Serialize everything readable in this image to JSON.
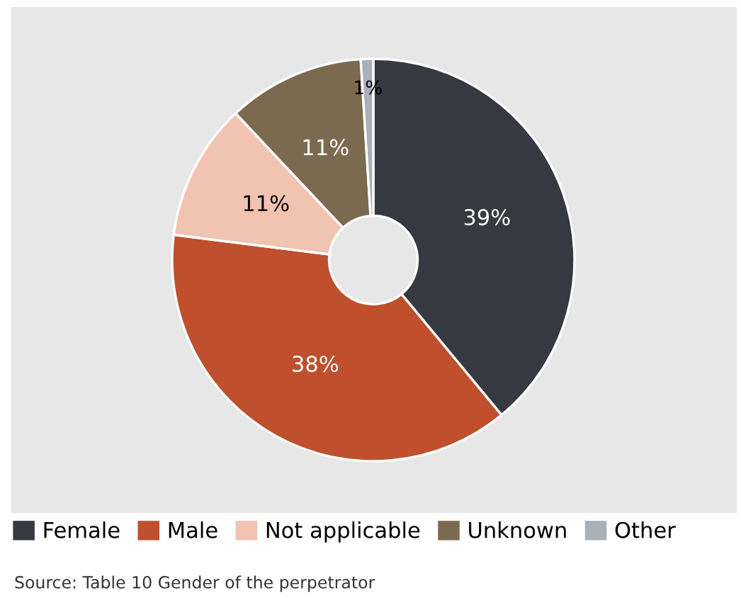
{
  "chart_data": {
    "type": "donut",
    "categories": [
      "Female",
      "Male",
      "Not applicable",
      "Unknown",
      "Other"
    ],
    "values": [
      39,
      38,
      11,
      11,
      1
    ],
    "colors": [
      "#363842",
      "#c04f2d",
      "#f1c3b1",
      "#7b6a4f",
      "#a8b0b8"
    ],
    "value_labels": [
      "39%",
      "38%",
      "11%",
      "11%",
      "1%"
    ],
    "legend": "bottom",
    "annotations": [
      "Source: Table 10 Gender of the perpetrator"
    ]
  }
}
